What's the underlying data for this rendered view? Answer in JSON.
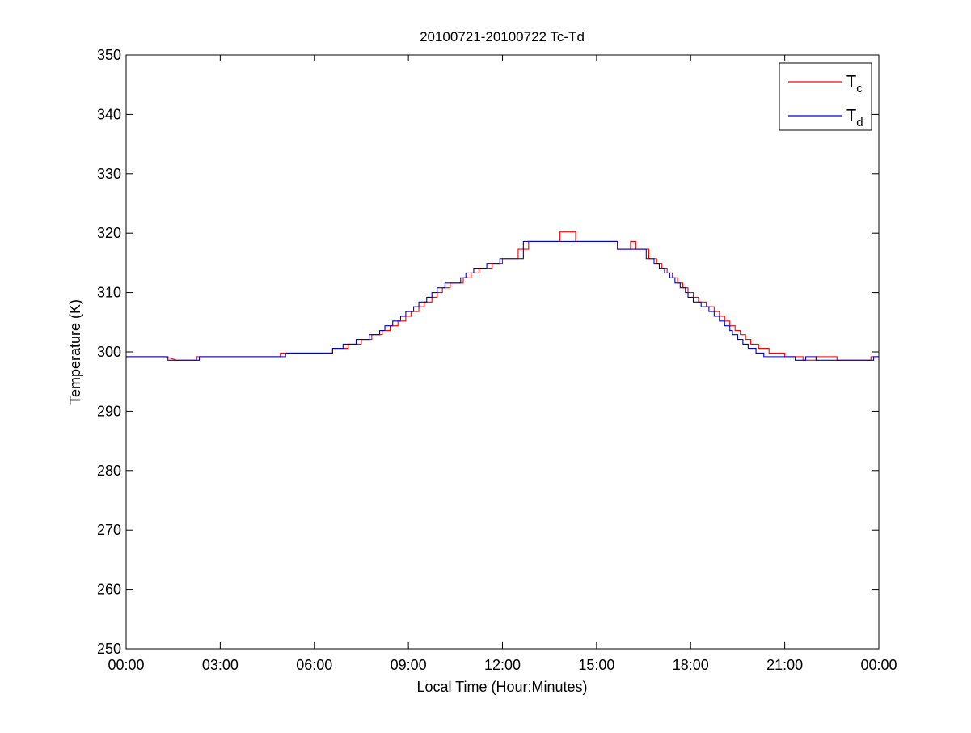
{
  "chart_data": {
    "type": "line",
    "title": "20100721-20100722 Tc-Td",
    "xlabel": "Local Time (Hour:Minutes)",
    "ylabel": "Temperature (K)",
    "xlim": [
      "00:00",
      "24:00"
    ],
    "ylim": [
      250,
      350
    ],
    "x_ticks": [
      "00:00",
      "03:00",
      "06:00",
      "09:00",
      "12:00",
      "15:00",
      "18:00",
      "21:00",
      "00:00"
    ],
    "y_ticks": [
      250,
      260,
      270,
      280,
      290,
      300,
      310,
      320,
      330,
      340,
      350
    ],
    "grid": false,
    "legend_position": "top-right",
    "series": [
      {
        "name": "Tc",
        "legend_main": "T",
        "legend_sub": "c",
        "color": "#ff0000",
        "points": [
          [
            "00:00",
            299.2
          ],
          [
            "01:15",
            299.2
          ],
          [
            "01:37",
            298.6
          ],
          [
            "02:15",
            298.6
          ],
          [
            "02:15",
            299.2
          ],
          [
            "04:55",
            299.2
          ],
          [
            "04:55",
            299.8
          ],
          [
            "06:35",
            299.8
          ],
          [
            "06:35",
            300.6
          ],
          [
            "07:05",
            300.6
          ],
          [
            "07:05",
            301.3
          ],
          [
            "07:30",
            301.3
          ],
          [
            "07:30",
            302.1
          ],
          [
            "07:50",
            302.1
          ],
          [
            "07:50",
            302.9
          ],
          [
            "08:10",
            302.9
          ],
          [
            "08:10",
            303.6
          ],
          [
            "08:25",
            303.6
          ],
          [
            "08:25",
            304.4
          ],
          [
            "08:40",
            304.4
          ],
          [
            "08:40",
            305.2
          ],
          [
            "08:55",
            305.2
          ],
          [
            "08:55",
            306.0
          ],
          [
            "09:05",
            306.0
          ],
          [
            "09:05",
            306.8
          ],
          [
            "09:20",
            306.8
          ],
          [
            "09:20",
            307.6
          ],
          [
            "09:30",
            307.6
          ],
          [
            "09:30",
            308.4
          ],
          [
            "09:45",
            308.4
          ],
          [
            "09:45",
            309.2
          ],
          [
            "09:55",
            309.2
          ],
          [
            "09:55",
            310.0
          ],
          [
            "10:05",
            310.0
          ],
          [
            "10:05",
            310.8
          ],
          [
            "10:20",
            310.8
          ],
          [
            "10:20",
            311.6
          ],
          [
            "10:45",
            311.6
          ],
          [
            "10:45",
            312.5
          ],
          [
            "11:00",
            312.5
          ],
          [
            "11:00",
            313.3
          ],
          [
            "11:15",
            313.3
          ],
          [
            "11:15",
            314.1
          ],
          [
            "11:40",
            314.1
          ],
          [
            "11:40",
            314.9
          ],
          [
            "12:00",
            314.9
          ],
          [
            "12:00",
            315.7
          ],
          [
            "12:30",
            315.7
          ],
          [
            "12:30",
            317.3
          ],
          [
            "12:50",
            317.3
          ],
          [
            "12:50",
            318.6
          ],
          [
            "13:50",
            318.6
          ],
          [
            "13:50",
            320.2
          ],
          [
            "14:20",
            320.2
          ],
          [
            "14:20",
            318.6
          ],
          [
            "15:40",
            318.6
          ],
          [
            "15:40",
            317.3
          ],
          [
            "16:05",
            317.3
          ],
          [
            "16:05",
            318.6
          ],
          [
            "16:15",
            318.6
          ],
          [
            "16:15",
            317.3
          ],
          [
            "16:40",
            317.3
          ],
          [
            "16:40",
            315.7
          ],
          [
            "16:55",
            315.7
          ],
          [
            "16:55",
            314.9
          ],
          [
            "17:05",
            314.9
          ],
          [
            "17:05",
            314.1
          ],
          [
            "17:15",
            314.1
          ],
          [
            "17:15",
            313.3
          ],
          [
            "17:25",
            313.3
          ],
          [
            "17:25",
            312.5
          ],
          [
            "17:35",
            312.5
          ],
          [
            "17:35",
            311.6
          ],
          [
            "17:45",
            311.6
          ],
          [
            "17:45",
            310.8
          ],
          [
            "17:55",
            310.8
          ],
          [
            "17:55",
            310.0
          ],
          [
            "18:05",
            310.0
          ],
          [
            "18:05",
            309.2
          ],
          [
            "18:15",
            309.2
          ],
          [
            "18:15",
            308.4
          ],
          [
            "18:30",
            308.4
          ],
          [
            "18:30",
            307.6
          ],
          [
            "18:45",
            307.6
          ],
          [
            "18:45",
            306.8
          ],
          [
            "18:55",
            306.8
          ],
          [
            "18:55",
            306.0
          ],
          [
            "19:05",
            306.0
          ],
          [
            "19:05",
            305.2
          ],
          [
            "19:15",
            305.2
          ],
          [
            "19:15",
            304.4
          ],
          [
            "19:25",
            304.4
          ],
          [
            "19:25",
            303.6
          ],
          [
            "19:35",
            303.6
          ],
          [
            "19:35",
            302.9
          ],
          [
            "19:45",
            302.9
          ],
          [
            "19:45",
            302.1
          ],
          [
            "19:55",
            302.1
          ],
          [
            "19:55",
            301.3
          ],
          [
            "20:10",
            301.3
          ],
          [
            "20:10",
            300.6
          ],
          [
            "20:30",
            300.6
          ],
          [
            "20:30",
            299.8
          ],
          [
            "21:00",
            299.8
          ],
          [
            "21:00",
            299.2
          ],
          [
            "21:35",
            299.2
          ],
          [
            "21:35",
            298.6
          ],
          [
            "22:00",
            298.6
          ],
          [
            "22:00",
            299.2
          ],
          [
            "22:40",
            299.2
          ],
          [
            "22:40",
            298.6
          ],
          [
            "23:45",
            298.6
          ],
          [
            "23:45",
            299.2
          ],
          [
            "24:00",
            299.2
          ]
        ]
      },
      {
        "name": "Td",
        "legend_main": "T",
        "legend_sub": "d",
        "color": "#0000cc",
        "points": [
          [
            "00:00",
            299.2
          ],
          [
            "01:20",
            299.2
          ],
          [
            "01:20",
            298.6
          ],
          [
            "02:20",
            298.6
          ],
          [
            "02:20",
            299.2
          ],
          [
            "05:05",
            299.2
          ],
          [
            "05:05",
            299.8
          ],
          [
            "06:35",
            299.8
          ],
          [
            "06:35",
            300.6
          ],
          [
            "06:55",
            300.6
          ],
          [
            "06:55",
            301.3
          ],
          [
            "07:20",
            301.3
          ],
          [
            "07:20",
            302.1
          ],
          [
            "07:45",
            302.1
          ],
          [
            "07:45",
            302.9
          ],
          [
            "08:05",
            302.9
          ],
          [
            "08:05",
            303.6
          ],
          [
            "08:15",
            303.6
          ],
          [
            "08:15",
            304.4
          ],
          [
            "08:30",
            304.4
          ],
          [
            "08:30",
            305.2
          ],
          [
            "08:45",
            305.2
          ],
          [
            "08:45",
            306.0
          ],
          [
            "08:55",
            306.0
          ],
          [
            "08:55",
            306.8
          ],
          [
            "09:10",
            306.8
          ],
          [
            "09:10",
            307.6
          ],
          [
            "09:20",
            307.6
          ],
          [
            "09:20",
            308.4
          ],
          [
            "09:35",
            308.4
          ],
          [
            "09:35",
            309.2
          ],
          [
            "09:45",
            309.2
          ],
          [
            "09:45",
            310.0
          ],
          [
            "09:55",
            310.0
          ],
          [
            "09:55",
            310.8
          ],
          [
            "10:10",
            310.8
          ],
          [
            "10:10",
            311.6
          ],
          [
            "10:40",
            311.6
          ],
          [
            "10:40",
            312.5
          ],
          [
            "10:50",
            312.5
          ],
          [
            "10:50",
            313.3
          ],
          [
            "11:05",
            313.3
          ],
          [
            "11:05",
            314.1
          ],
          [
            "11:30",
            314.1
          ],
          [
            "11:30",
            314.9
          ],
          [
            "11:55",
            314.9
          ],
          [
            "11:55",
            315.7
          ],
          [
            "12:40",
            315.7
          ],
          [
            "12:40",
            318.6
          ],
          [
            "15:40",
            318.6
          ],
          [
            "15:40",
            317.3
          ],
          [
            "16:35",
            317.3
          ],
          [
            "16:35",
            315.7
          ],
          [
            "16:50",
            315.7
          ],
          [
            "16:50",
            314.9
          ],
          [
            "17:00",
            314.9
          ],
          [
            "17:00",
            314.1
          ],
          [
            "17:10",
            314.1
          ],
          [
            "17:10",
            313.3
          ],
          [
            "17:20",
            313.3
          ],
          [
            "17:20",
            312.5
          ],
          [
            "17:30",
            312.5
          ],
          [
            "17:30",
            311.6
          ],
          [
            "17:40",
            311.6
          ],
          [
            "17:40",
            310.8
          ],
          [
            "17:50",
            310.8
          ],
          [
            "17:50",
            310.0
          ],
          [
            "17:55",
            310.0
          ],
          [
            "17:55",
            309.2
          ],
          [
            "18:05",
            309.2
          ],
          [
            "18:05",
            308.4
          ],
          [
            "18:20",
            308.4
          ],
          [
            "18:20",
            307.6
          ],
          [
            "18:35",
            307.6
          ],
          [
            "18:35",
            306.8
          ],
          [
            "18:45",
            306.8
          ],
          [
            "18:45",
            306.0
          ],
          [
            "18:55",
            306.0
          ],
          [
            "18:55",
            305.2
          ],
          [
            "19:05",
            305.2
          ],
          [
            "19:05",
            304.4
          ],
          [
            "19:15",
            304.4
          ],
          [
            "19:15",
            303.6
          ],
          [
            "19:20",
            303.6
          ],
          [
            "19:20",
            302.9
          ],
          [
            "19:30",
            302.9
          ],
          [
            "19:30",
            302.1
          ],
          [
            "19:40",
            302.1
          ],
          [
            "19:40",
            301.3
          ],
          [
            "19:50",
            301.3
          ],
          [
            "19:50",
            300.6
          ],
          [
            "20:05",
            300.6
          ],
          [
            "20:05",
            299.8
          ],
          [
            "20:20",
            299.8
          ],
          [
            "20:20",
            299.2
          ],
          [
            "21:20",
            299.2
          ],
          [
            "21:20",
            298.6
          ],
          [
            "21:40",
            298.6
          ],
          [
            "21:40",
            299.2
          ],
          [
            "22:00",
            299.2
          ],
          [
            "22:00",
            298.6
          ],
          [
            "23:50",
            298.6
          ],
          [
            "23:50",
            299.2
          ],
          [
            "24:00",
            299.2
          ]
        ]
      }
    ]
  }
}
